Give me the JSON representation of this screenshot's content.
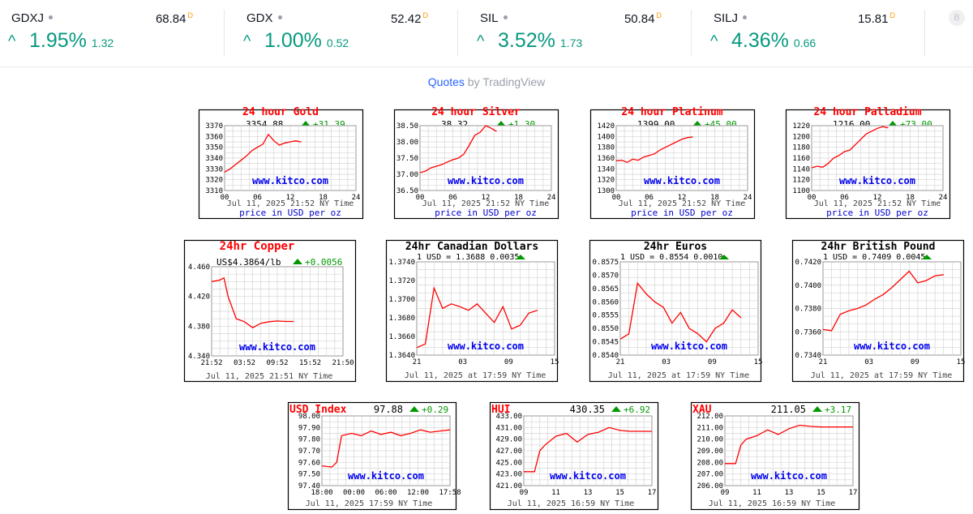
{
  "ticker": {
    "next_icon_letter": "B",
    "items": [
      {
        "symbol": "GDXJ",
        "price": "68.84",
        "delay_tag": "D",
        "change_pct": "1.95%",
        "change_abs": "1.32"
      },
      {
        "symbol": "GDX",
        "price": "52.42",
        "delay_tag": "D",
        "change_pct": "1.00%",
        "change_abs": "0.52"
      },
      {
        "symbol": "SIL",
        "price": "50.84",
        "delay_tag": "D",
        "change_pct": "3.52%",
        "change_abs": "1.73"
      },
      {
        "symbol": "SILJ",
        "price": "15.81",
        "delay_tag": "D",
        "change_pct": "4.36%",
        "change_abs": "0.66"
      }
    ]
  },
  "credit": {
    "link_text": "Quotes",
    "by_text": " by TradingView"
  },
  "colors": {
    "up": "#089981",
    "line": "#ff0000",
    "kitco_text": "#0000ee",
    "arrow": "#009900"
  },
  "charts": [
    {
      "id": "gold",
      "style": "kitco",
      "title": "24 hour Gold",
      "price": "3354.88",
      "change": "+31.39",
      "y_ticks": [
        "3370",
        "3360",
        "3350",
        "3340",
        "3330",
        "3320",
        "3310"
      ],
      "ylim": [
        3310,
        3370
      ],
      "x_ticks": [
        "00",
        "06",
        "12",
        "18",
        "24"
      ],
      "date": "Jul 11, 2025 21:52 NY Time",
      "units": "price in USD per oz",
      "watermark": "www.kitco.com",
      "series": [
        [
          0,
          3327
        ],
        [
          1,
          3330
        ],
        [
          2,
          3334
        ],
        [
          3,
          3338
        ],
        [
          4,
          3342
        ],
        [
          5,
          3347
        ],
        [
          6,
          3350
        ],
        [
          7,
          3353
        ],
        [
          8,
          3362
        ],
        [
          9,
          3356
        ],
        [
          10,
          3352
        ],
        [
          11,
          3354
        ],
        [
          12,
          3355
        ],
        [
          13,
          3356
        ],
        [
          14,
          3354.88
        ]
      ],
      "span": 24
    },
    {
      "id": "silver",
      "style": "kitco",
      "title": "24 hour Silver",
      "price": "38.32",
      "change": "+1.30",
      "y_ticks": [
        "38.50",
        "38.00",
        "37.50",
        "37.00",
        "36.50"
      ],
      "ylim": [
        36.5,
        38.5
      ],
      "x_ticks": [
        "00",
        "06",
        "12",
        "18",
        "24"
      ],
      "date": "Jul 11, 2025 21:52 NY Time",
      "units": "price in USD per oz",
      "watermark": "www.kitco.com",
      "series": [
        [
          0,
          37.05
        ],
        [
          1,
          37.1
        ],
        [
          2,
          37.2
        ],
        [
          3,
          37.25
        ],
        [
          4,
          37.3
        ],
        [
          5,
          37.38
        ],
        [
          6,
          37.45
        ],
        [
          7,
          37.5
        ],
        [
          8,
          37.62
        ],
        [
          9,
          37.9
        ],
        [
          10,
          38.2
        ],
        [
          11,
          38.3
        ],
        [
          12,
          38.5
        ],
        [
          13,
          38.42
        ],
        [
          14,
          38.32
        ]
      ],
      "span": 24
    },
    {
      "id": "platinum",
      "style": "kitco",
      "title": "24 hour Platinum",
      "price": "1399.00",
      "change": "+45.00",
      "y_ticks": [
        "1420",
        "1400",
        "1380",
        "1360",
        "1340",
        "1320",
        "1300"
      ],
      "ylim": [
        1300,
        1420
      ],
      "x_ticks": [
        "00",
        "06",
        "12",
        "18",
        "24"
      ],
      "date": "Jul 11, 2025 21:52 NY Time",
      "units": "price in USD per oz",
      "watermark": "www.kitco.com",
      "series": [
        [
          0,
          1355
        ],
        [
          1,
          1356
        ],
        [
          2,
          1352
        ],
        [
          3,
          1358
        ],
        [
          4,
          1356
        ],
        [
          5,
          1362
        ],
        [
          6,
          1365
        ],
        [
          7,
          1368
        ],
        [
          8,
          1375
        ],
        [
          9,
          1380
        ],
        [
          10,
          1385
        ],
        [
          11,
          1390
        ],
        [
          12,
          1395
        ],
        [
          13,
          1398
        ],
        [
          14,
          1399
        ]
      ],
      "span": 24
    },
    {
      "id": "palladium",
      "style": "kitco",
      "title": "24 hour Palladium",
      "price": "1216.00",
      "change": "+73.00",
      "y_ticks": [
        "1220",
        "1200",
        "1180",
        "1160",
        "1140",
        "1120",
        "1100"
      ],
      "ylim": [
        1100,
        1220
      ],
      "x_ticks": [
        "00",
        "06",
        "12",
        "18",
        "24"
      ],
      "date": "Jul 11, 2025 21:52 NY Time",
      "units": "price in USD per oz",
      "watermark": "www.kitco.com",
      "series": [
        [
          0,
          1142
        ],
        [
          1,
          1145
        ],
        [
          2,
          1143
        ],
        [
          3,
          1150
        ],
        [
          4,
          1160
        ],
        [
          5,
          1165
        ],
        [
          6,
          1172
        ],
        [
          7,
          1175
        ],
        [
          8,
          1185
        ],
        [
          9,
          1195
        ],
        [
          10,
          1205
        ],
        [
          11,
          1210
        ],
        [
          12,
          1215
        ],
        [
          13,
          1218
        ],
        [
          14,
          1216
        ]
      ],
      "span": 24
    },
    {
      "id": "copper",
      "style": "copper",
      "title": "24hr Copper",
      "price": "US$4.3864/lb",
      "change": "+0.0056",
      "y_ticks": [
        "4.460",
        "4.420",
        "4.380",
        "4.340"
      ],
      "ylim": [
        4.34,
        4.46
      ],
      "x_ticks": [
        "21:52",
        "03:52",
        "09:52",
        "15:52",
        "21:50"
      ],
      "date": "Jul 11, 2025 21:51 NY Time",
      "watermark": "www.kitco.com",
      "series": [
        [
          0,
          4.44
        ],
        [
          1,
          4.442
        ],
        [
          1.5,
          4.445
        ],
        [
          2,
          4.42
        ],
        [
          2.5,
          4.405
        ],
        [
          3,
          4.39
        ],
        [
          4,
          4.386
        ],
        [
          5,
          4.378
        ],
        [
          6,
          4.384
        ],
        [
          7,
          4.386
        ],
        [
          8,
          4.387
        ],
        [
          9,
          4.3864
        ],
        [
          10,
          4.3864
        ]
      ],
      "span": 16
    },
    {
      "id": "cad",
      "style": "fx",
      "title": "24hr Canadian Dollars",
      "quote": "1 USD = 1.3688  0.0035",
      "y_ticks": [
        "1.3740",
        "1.3720",
        "1.3700",
        "1.3680",
        "1.3660",
        "1.3640"
      ],
      "ylim": [
        1.364,
        1.374
      ],
      "x_ticks": [
        "21",
        "03",
        "09",
        "15"
      ],
      "date": "Jul 11, 2025 at 17:59 NY Time",
      "watermark": "www.kitco.com",
      "series": [
        [
          0,
          1.3648
        ],
        [
          1,
          1.3652
        ],
        [
          2,
          1.3712
        ],
        [
          3,
          1.369
        ],
        [
          4,
          1.3695
        ],
        [
          5,
          1.3692
        ],
        [
          6,
          1.3688
        ],
        [
          7,
          1.3695
        ],
        [
          8,
          1.3685
        ],
        [
          9,
          1.3675
        ],
        [
          10,
          1.3692
        ],
        [
          11,
          1.3668
        ],
        [
          12,
          1.3672
        ],
        [
          13,
          1.3685
        ],
        [
          14,
          1.3688
        ]
      ],
      "span": 16
    },
    {
      "id": "eur",
      "style": "fx",
      "title": "24hr Euros",
      "quote": "1 USD = 0.8554  0.0010",
      "y_ticks": [
        "0.8575",
        "0.8570",
        "0.8565",
        "0.8560",
        "0.8555",
        "0.8550",
        "0.8545",
        "0.8540"
      ],
      "ylim": [
        0.854,
        0.8575
      ],
      "x_ticks": [
        "21",
        "03",
        "09",
        "15"
      ],
      "date": "Jul 11, 2025 at 17:59 NY Time",
      "watermark": "www.kitco.com",
      "series": [
        [
          0,
          0.8546
        ],
        [
          1,
          0.8548
        ],
        [
          2,
          0.8567
        ],
        [
          3,
          0.8563
        ],
        [
          4,
          0.856
        ],
        [
          5,
          0.8558
        ],
        [
          6,
          0.8552
        ],
        [
          7,
          0.8556
        ],
        [
          8,
          0.855
        ],
        [
          9,
          0.8548
        ],
        [
          10,
          0.8545
        ],
        [
          11,
          0.855
        ],
        [
          12,
          0.8552
        ],
        [
          13,
          0.8557
        ],
        [
          14,
          0.8554
        ]
      ],
      "span": 16
    },
    {
      "id": "gbp",
      "style": "fx",
      "title": "24hr British Pound",
      "quote": "1 USD = 0.7409  0.0045",
      "y_ticks": [
        "0.7420",
        "0.7400",
        "0.7380",
        "0.7360",
        "0.7340"
      ],
      "ylim": [
        0.734,
        0.742
      ],
      "x_ticks": [
        "21",
        "03",
        "09",
        "15"
      ],
      "date": "Jul 11, 2025 at 17:59 NY Time",
      "watermark": "www.kitco.com",
      "series": [
        [
          0,
          0.7362
        ],
        [
          1,
          0.7361
        ],
        [
          2,
          0.7375
        ],
        [
          3,
          0.7378
        ],
        [
          4,
          0.738
        ],
        [
          5,
          0.7383
        ],
        [
          6,
          0.7388
        ],
        [
          7,
          0.7392
        ],
        [
          8,
          0.7398
        ],
        [
          9,
          0.7405
        ],
        [
          10,
          0.7412
        ],
        [
          11,
          0.7402
        ],
        [
          12,
          0.7404
        ],
        [
          13,
          0.7408
        ],
        [
          14,
          0.7409
        ]
      ],
      "span": 16
    },
    {
      "id": "usdx",
      "style": "index",
      "title": "USD Index",
      "price": "97.88",
      "change": "+0.29",
      "y_ticks": [
        "98.00",
        "97.90",
        "97.80",
        "97.70",
        "97.60",
        "97.50",
        "97.40"
      ],
      "ylim": [
        97.4,
        98.0
      ],
      "x_ticks": [
        "18:00",
        "00:00",
        "06:00",
        "12:00",
        "17:58"
      ],
      "date": "Jul 11, 2025 17:59 NY Time",
      "watermark": "www.kitco.com",
      "series": [
        [
          0,
          97.57
        ],
        [
          1,
          97.56
        ],
        [
          1.5,
          97.6
        ],
        [
          2,
          97.83
        ],
        [
          3,
          97.85
        ],
        [
          4,
          97.83
        ],
        [
          5,
          97.87
        ],
        [
          6,
          97.84
        ],
        [
          7,
          97.86
        ],
        [
          8,
          97.83
        ],
        [
          9,
          97.85
        ],
        [
          10,
          97.88
        ],
        [
          11,
          97.86
        ],
        [
          12,
          97.87
        ],
        [
          13,
          97.88
        ]
      ],
      "span": 13
    },
    {
      "id": "hui",
      "style": "index",
      "title": "HUI",
      "price": "430.35",
      "change": "+6.92",
      "y_ticks": [
        "433.00",
        "431.00",
        "429.00",
        "427.00",
        "425.00",
        "423.00",
        "421.00"
      ],
      "ylim": [
        421,
        433
      ],
      "x_ticks": [
        "09",
        "11",
        "13",
        "15",
        "17"
      ],
      "date": "Jul 11, 2025 16:59 NY Time",
      "watermark": "www.kitco.com",
      "series": [
        [
          0,
          423.4
        ],
        [
          1,
          423.4
        ],
        [
          1.5,
          427
        ],
        [
          2,
          428
        ],
        [
          3,
          429.5
        ],
        [
          4,
          430
        ],
        [
          5,
          428.5
        ],
        [
          6,
          429.8
        ],
        [
          7,
          430.2
        ],
        [
          8,
          431
        ],
        [
          9,
          430.5
        ],
        [
          10,
          430.35
        ],
        [
          12,
          430.35
        ]
      ],
      "span": 12
    },
    {
      "id": "xau",
      "style": "index",
      "title": "XAU",
      "price": "211.05",
      "change": "+3.17",
      "y_ticks": [
        "212.00",
        "211.00",
        "210.00",
        "209.00",
        "208.00",
        "207.00",
        "206.00"
      ],
      "ylim": [
        206,
        212
      ],
      "x_ticks": [
        "09",
        "11",
        "13",
        "15",
        "17"
      ],
      "date": "Jul 11, 2025 16:59 NY Time",
      "watermark": "www.kitco.com",
      "series": [
        [
          0,
          207.9
        ],
        [
          1,
          207.9
        ],
        [
          1.5,
          209.5
        ],
        [
          2,
          210
        ],
        [
          3,
          210.3
        ],
        [
          4,
          210.8
        ],
        [
          5,
          210.4
        ],
        [
          6,
          210.9
        ],
        [
          7,
          211.2
        ],
        [
          8,
          211.1
        ],
        [
          9,
          211.05
        ],
        [
          10,
          211.05
        ],
        [
          12,
          211.05
        ]
      ],
      "span": 12
    }
  ]
}
